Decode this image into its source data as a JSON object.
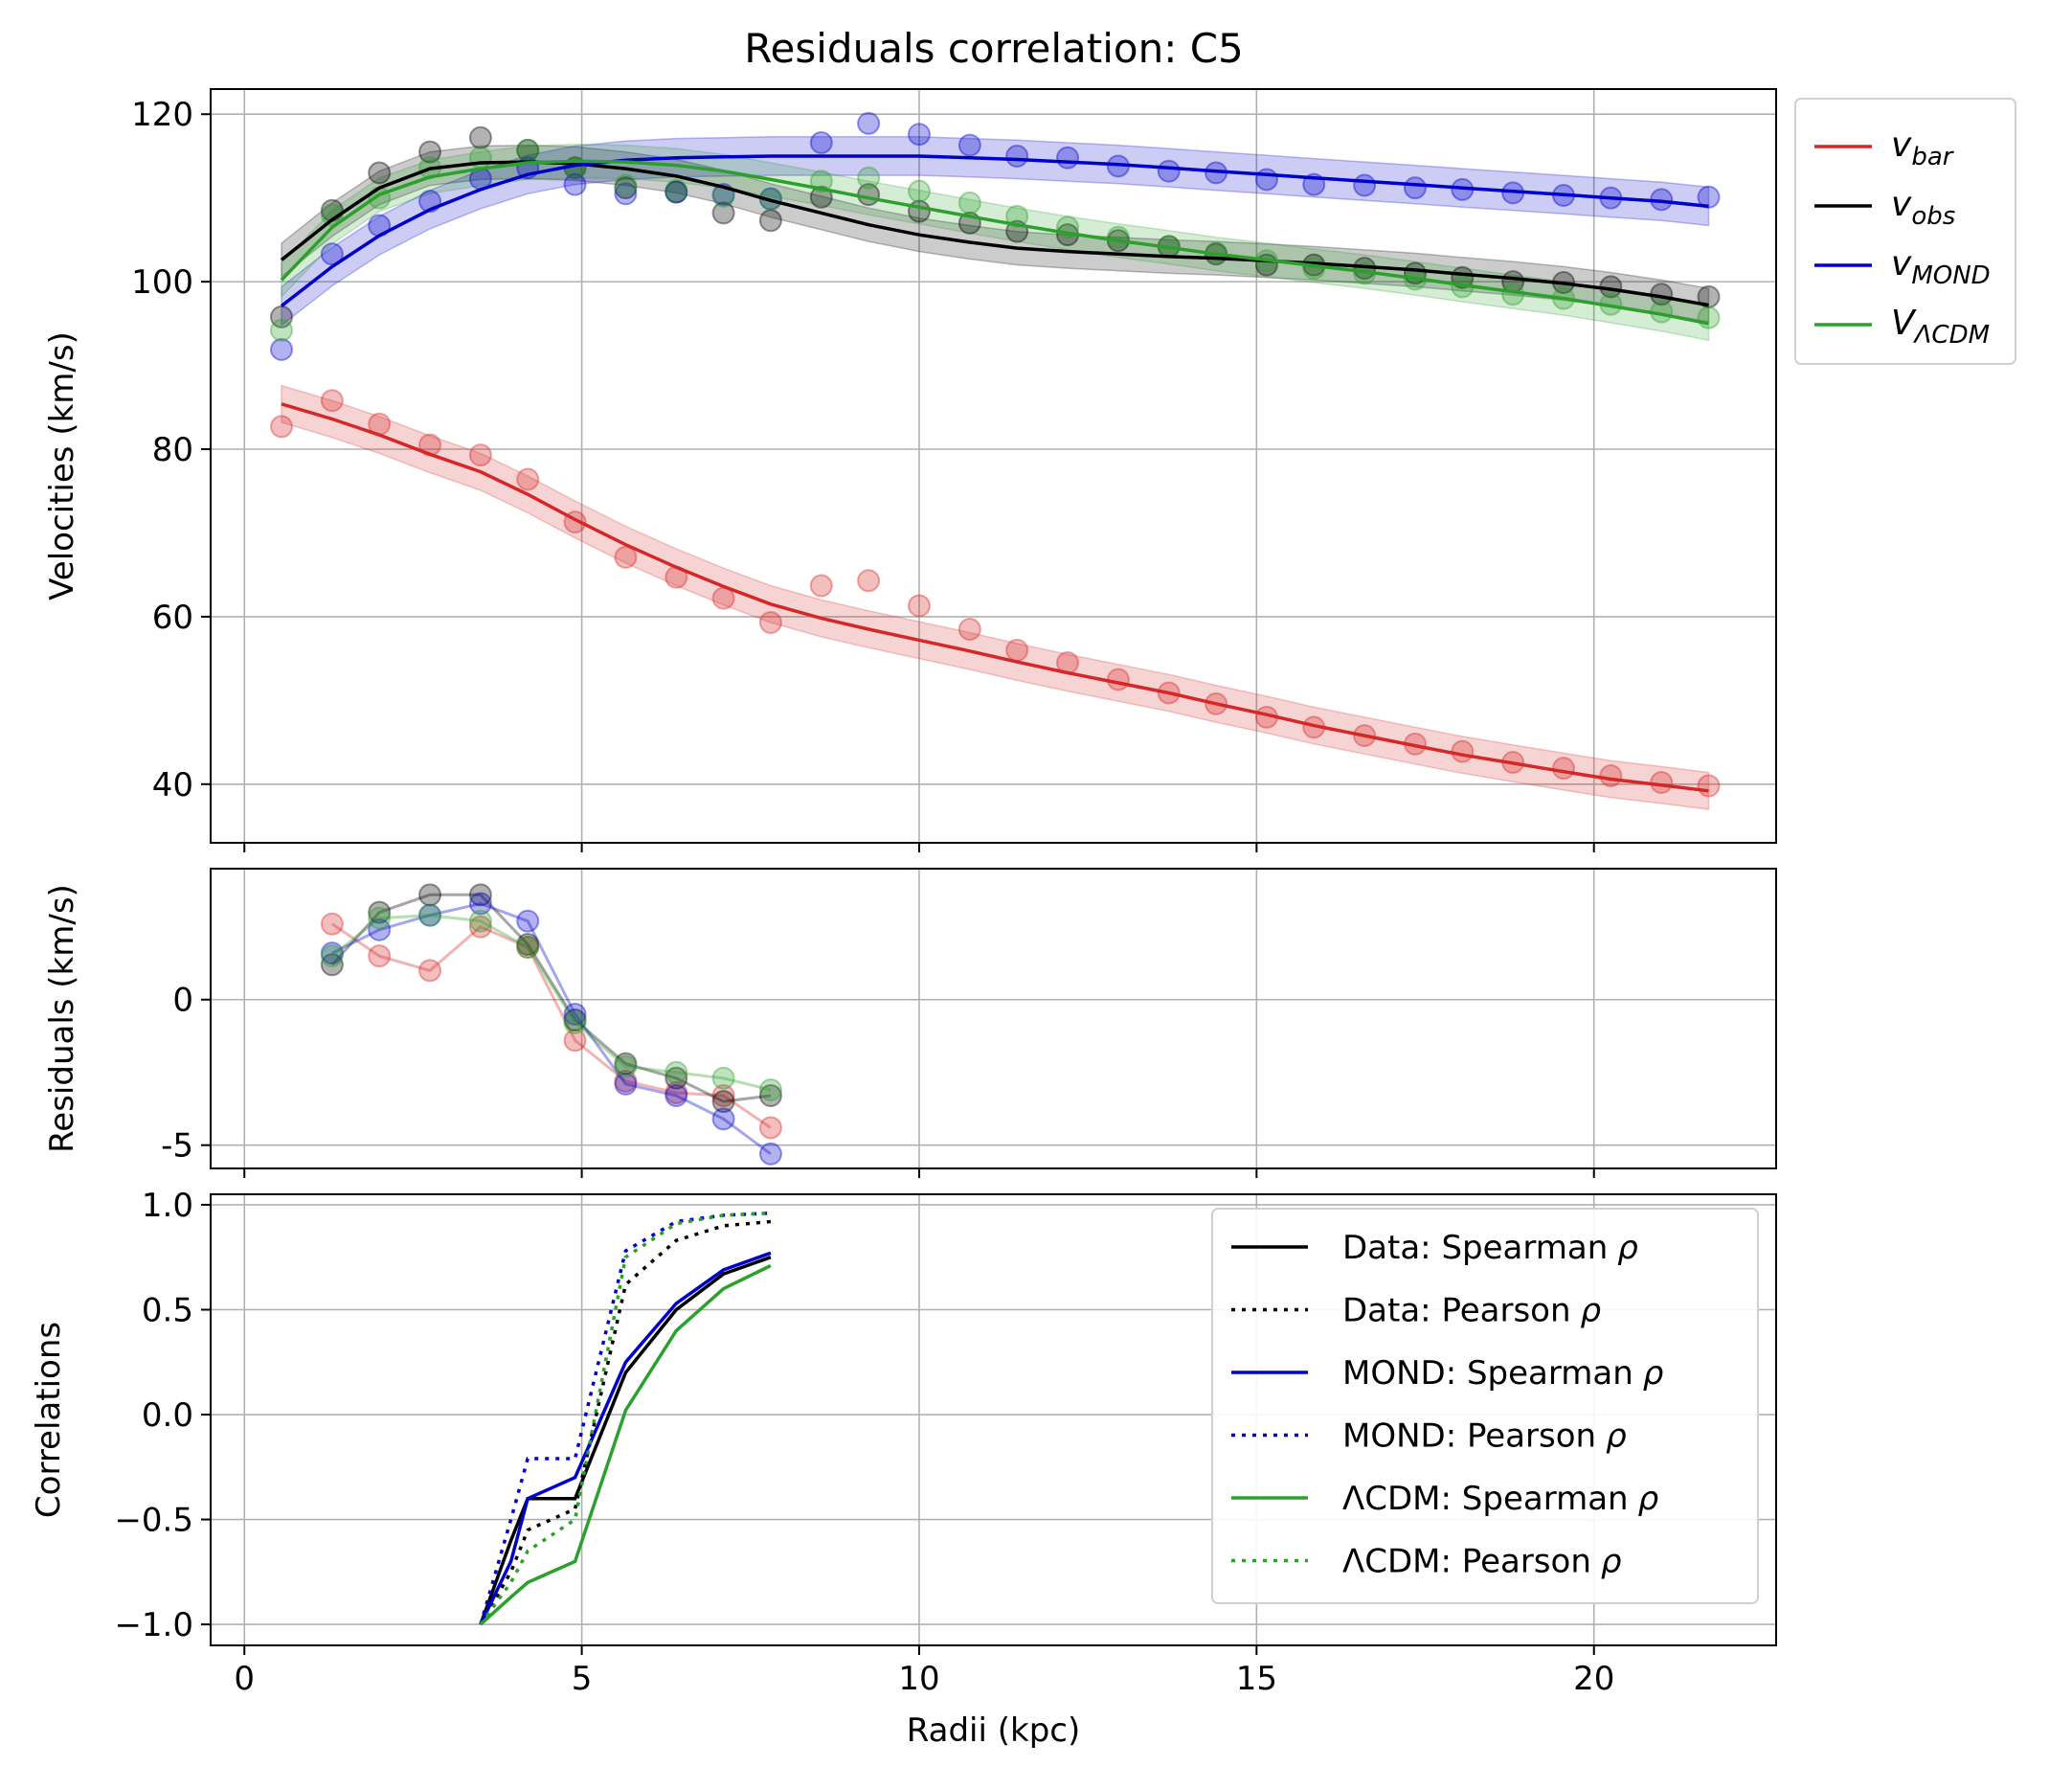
{
  "chart_data": [
    {
      "type": "line",
      "title": "Residuals correlation: C5",
      "xlabel": "",
      "ylabel": "Velocities (km/s)",
      "xlim": [
        -0.5,
        22.7
      ],
      "ylim": [
        33,
        123
      ],
      "xticks": [
        0,
        5,
        10,
        15,
        20
      ],
      "yticks": [
        40,
        60,
        80,
        100,
        120
      ],
      "grid": true,
      "legend_position": "outside-right-top",
      "x": [
        0.55,
        1.3,
        2.0,
        2.75,
        3.5,
        4.2,
        4.9,
        5.65,
        6.4,
        7.1,
        7.8,
        8.55,
        9.25,
        10.0,
        10.75,
        11.45,
        12.2,
        12.95,
        13.7,
        14.4,
        15.15,
        15.85,
        16.6,
        17.35,
        18.05,
        18.8,
        19.55,
        20.25,
        21.0,
        21.7
      ],
      "series": [
        {
          "name": "v_bar",
          "label_main": "v",
          "label_sub": "bar",
          "color": "#d62728",
          "points": [
            82.7,
            85.8,
            83.0,
            80.5,
            79.3,
            76.4,
            71.3,
            67.1,
            64.7,
            62.2,
            59.3,
            63.7,
            64.3,
            61.3,
            58.5,
            56.0,
            54.5,
            52.5,
            50.9,
            49.6,
            48.0,
            46.8,
            45.8,
            44.8,
            43.9,
            42.6,
            41.9,
            41.0,
            40.2,
            39.8
          ],
          "line": [
            85.4,
            83.6,
            81.7,
            79.4,
            77.3,
            74.6,
            71.6,
            68.6,
            65.9,
            63.6,
            61.5,
            59.8,
            58.5,
            57.2,
            55.9,
            54.6,
            53.3,
            52.1,
            50.9,
            49.6,
            48.3,
            47.0,
            45.8,
            44.6,
            43.5,
            42.5,
            41.5,
            40.6,
            39.9,
            39.2
          ],
          "band": 2.2
        },
        {
          "name": "v_obs",
          "label_main": "v",
          "label_sub": "obs",
          "color": "#000000",
          "points": [
            95.8,
            108.5,
            113.0,
            115.5,
            117.2,
            115.7,
            113.6,
            111.2,
            110.7,
            108.2,
            107.3,
            110.1,
            110.4,
            108.4,
            107.0,
            106.0,
            105.6,
            104.9,
            104.2,
            103.3,
            102.0,
            102.0,
            101.6,
            101.0,
            100.5,
            100.0,
            99.9,
            99.4,
            98.5,
            98.2
          ],
          "line": [
            102.6,
            107.4,
            111.2,
            113.5,
            114.2,
            114.3,
            114.1,
            113.5,
            112.6,
            111.3,
            109.7,
            108.2,
            106.8,
            105.6,
            104.7,
            104.0,
            103.6,
            103.3,
            103.0,
            102.8,
            102.5,
            102.2,
            101.8,
            101.4,
            100.9,
            100.4,
            99.8,
            99.1,
            98.2,
            97.2
          ],
          "band": 2.0
        },
        {
          "name": "v_MOND",
          "label_main": "v",
          "label_sub": "MOND",
          "color": "#0000cd",
          "points": [
            91.9,
            103.3,
            106.7,
            109.6,
            112.3,
            113.6,
            111.6,
            110.5,
            110.7,
            110.4,
            109.9,
            116.6,
            118.9,
            117.6,
            116.3,
            115.0,
            114.8,
            113.8,
            113.2,
            113.0,
            112.2,
            111.6,
            111.5,
            111.2,
            111.0,
            110.6,
            110.3,
            110.0,
            109.8,
            110.1
          ],
          "line": [
            97.1,
            101.8,
            105.5,
            108.6,
            111.0,
            112.8,
            113.9,
            114.5,
            114.8,
            114.9,
            115.0,
            115.0,
            115.0,
            115.0,
            114.8,
            114.6,
            114.3,
            114.0,
            113.6,
            113.2,
            112.8,
            112.4,
            112.0,
            111.6,
            111.2,
            110.8,
            110.4,
            110.0,
            109.6,
            109.0
          ],
          "band": 2.3
        },
        {
          "name": "V_ΛCDM",
          "label_main": "V",
          "label_sub": "ΛCDM",
          "color": "#2ca02c",
          "points": [
            94.2,
            108.0,
            110.0,
            113.6,
            114.8,
            115.7,
            113.6,
            111.5,
            110.9,
            110.2,
            109.8,
            112.0,
            112.4,
            110.8,
            109.4,
            107.8,
            106.5,
            105.3,
            104.2,
            103.4,
            102.5,
            101.6,
            101.0,
            100.3,
            99.4,
            98.5,
            98.0,
            97.3,
            96.4,
            95.7
          ],
          "line": [
            100.2,
            106.5,
            110.4,
            112.5,
            113.5,
            114.2,
            114.4,
            114.3,
            113.9,
            113.2,
            112.2,
            111.1,
            110.0,
            108.9,
            107.8,
            106.8,
            105.8,
            104.9,
            104.1,
            103.3,
            102.6,
            101.9,
            101.2,
            100.4,
            99.6,
            98.8,
            98.0,
            97.1,
            96.1,
            95.0
          ],
          "band": 2.0
        }
      ]
    },
    {
      "type": "line",
      "title": "",
      "xlabel": "",
      "ylabel": "Residuals (km/s)",
      "xlim": [
        -0.5,
        22.7
      ],
      "ylim": [
        -5.8,
        4.5
      ],
      "xticks": [
        0,
        5,
        10,
        15,
        20
      ],
      "yticks": [
        -5,
        0
      ],
      "grid": true,
      "x": [
        1.3,
        2.0,
        2.75,
        3.5,
        4.2,
        4.9,
        5.65,
        6.4,
        7.1,
        7.8
      ],
      "series": [
        {
          "name": "v_bar",
          "color": "#d62728",
          "values": [
            2.6,
            1.5,
            1.0,
            2.5,
            1.8,
            -1.4,
            -2.8,
            -3.2,
            -3.3,
            -4.4
          ]
        },
        {
          "name": "v_obs",
          "color": "#000000",
          "values": [
            1.2,
            3.0,
            3.6,
            3.6,
            1.9,
            -0.7,
            -2.2,
            -2.7,
            -3.5,
            -3.3
          ]
        },
        {
          "name": "v_MOND",
          "color": "#0000cd",
          "values": [
            1.6,
            2.4,
            2.9,
            3.3,
            2.7,
            -0.5,
            -2.9,
            -3.3,
            -4.1,
            -5.3
          ]
        },
        {
          "name": "V_ΛCDM",
          "color": "#2ca02c",
          "values": [
            1.5,
            2.8,
            2.9,
            2.7,
            1.8,
            -0.8,
            -2.3,
            -2.5,
            -2.7,
            -3.1
          ]
        }
      ]
    },
    {
      "type": "line",
      "title": "",
      "xlabel": "Radii (kpc)",
      "ylabel": "Correlations",
      "xlim": [
        -0.5,
        22.7
      ],
      "ylim": [
        -1.1,
        1.05
      ],
      "xticks": [
        0,
        5,
        10,
        15,
        20
      ],
      "yticks": [
        -1.0,
        -0.5,
        0.0,
        0.5,
        1.0
      ],
      "ytick_labels": [
        "−1.0",
        "−0.5",
        "0.0",
        "0.5",
        "1.0"
      ],
      "grid": true,
      "legend_position": "upper-right",
      "x": [
        3.5,
        3.95,
        4.2,
        4.9,
        5.65,
        6.4,
        7.1,
        7.8
      ],
      "series": [
        {
          "name": "Data: Spearman",
          "symbol": "ρ",
          "color": "#000000",
          "dash": "solid",
          "values": [
            -1.0,
            -0.6,
            -0.4,
            -0.4,
            0.2,
            0.5,
            0.67,
            0.75
          ]
        },
        {
          "name": "Data: Pearson",
          "symbol": "ρ",
          "color": "#000000",
          "dash": "dotted",
          "values": [
            -1.0,
            -0.75,
            -0.55,
            -0.45,
            0.62,
            0.83,
            0.9,
            0.92
          ]
        },
        {
          "name": "MOND: Spearman",
          "symbol": "ρ",
          "color": "#0000cd",
          "dash": "solid",
          "values": [
            -1.0,
            -0.7,
            -0.4,
            -0.3,
            0.25,
            0.53,
            0.69,
            0.77
          ]
        },
        {
          "name": "MOND: Pearson",
          "symbol": "ρ",
          "color": "#0000cd",
          "dash": "dotted",
          "values": [
            -1.0,
            -0.5,
            -0.21,
            -0.21,
            0.78,
            0.92,
            0.95,
            0.96
          ]
        },
        {
          "name": "ΛCDM: Spearman",
          "symbol": "ρ",
          "color": "#2ca02c",
          "dash": "solid",
          "values": [
            -1.0,
            -0.87,
            -0.8,
            -0.7,
            0.02,
            0.4,
            0.6,
            0.71
          ]
        },
        {
          "name": "ΛCDM: Pearson",
          "symbol": "ρ",
          "color": "#2ca02c",
          "dash": "dotted",
          "values": [
            -1.0,
            -0.8,
            -0.65,
            -0.5,
            0.75,
            0.91,
            0.95,
            0.96
          ]
        }
      ]
    }
  ]
}
